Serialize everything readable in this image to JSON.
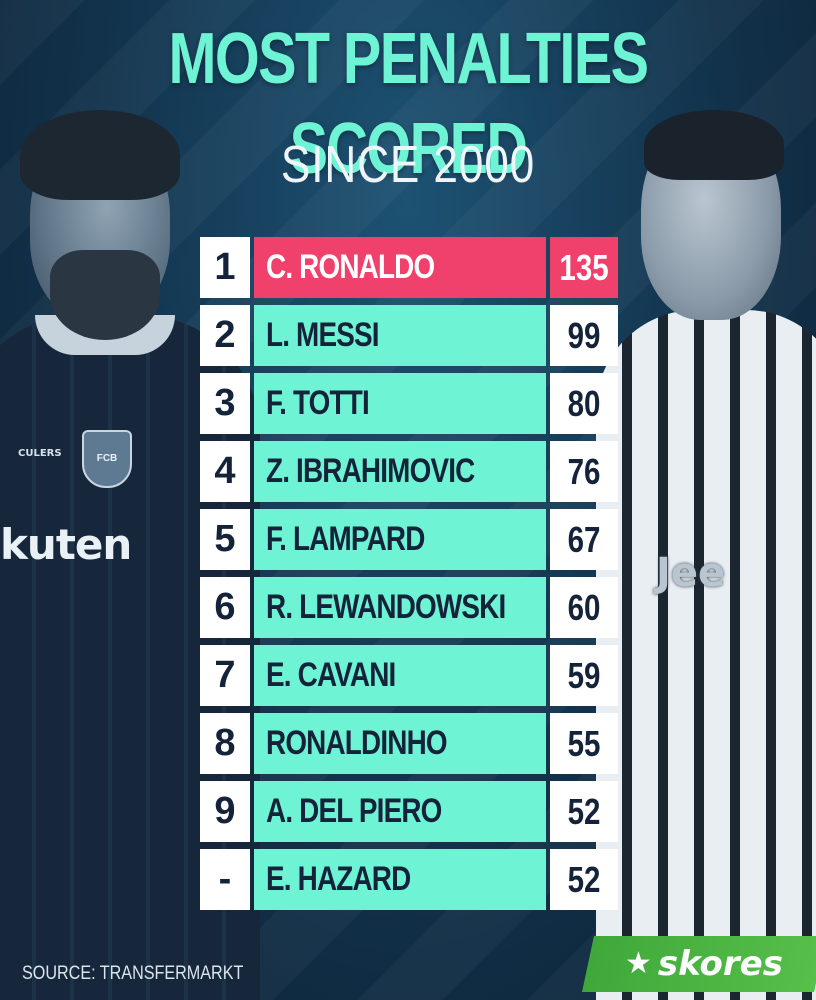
{
  "header": {
    "title": "MOST PENALTIES SCORED",
    "subtitle": "SINCE 2000"
  },
  "ranking": {
    "rows": [
      {
        "rank": "1",
        "name": "C. RONALDO",
        "value": "135"
      },
      {
        "rank": "2",
        "name": "L. MESSI",
        "value": "99"
      },
      {
        "rank": "3",
        "name": "F. TOTTI",
        "value": "80"
      },
      {
        "rank": "4",
        "name": "Z. IBRAHIMOVIC",
        "value": "76"
      },
      {
        "rank": "5",
        "name": "F. LAMPARD",
        "value": "67"
      },
      {
        "rank": "6",
        "name": "R. LEWANDOWSKI",
        "value": "60"
      },
      {
        "rank": "7",
        "name": "E. CAVANI",
        "value": "59"
      },
      {
        "rank": "8",
        "name": "RONALDINHO",
        "value": "55"
      },
      {
        "rank": "9",
        "name": "A. DEL PIERO",
        "value": "52"
      },
      {
        "rank": "-",
        "name": "E. HAZARD",
        "value": "52"
      }
    ]
  },
  "photos": {
    "left_jersey_sponsor": "kuten",
    "left_jersey_text": "CULERS",
    "left_crest": "FCB",
    "right_jersey_sponsor": "Jee"
  },
  "footer": {
    "source": "SOURCE: TRANSFERMARKT",
    "brand": "skores",
    "brand_icon": "star-icon"
  },
  "colors": {
    "accent": "#6ef3d5",
    "highlight": "#f0406c",
    "brand_green": "#4cb544"
  }
}
